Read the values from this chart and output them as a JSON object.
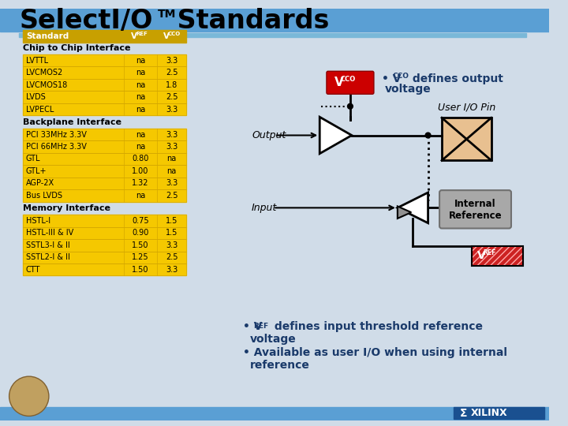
{
  "title": "SelectI/O",
  "title_tm": "TM",
  "title_suffix": " Standards",
  "bg_color": "#d0dce8",
  "header_bar_color": "#5a9fd4",
  "table_header_color": "#c8a000",
  "chip_rows": [
    [
      "LVTTL",
      "na",
      "3.3"
    ],
    [
      "LVCMOS2",
      "na",
      "2.5"
    ],
    [
      "LVCMOS18",
      "na",
      "1.8"
    ],
    [
      "LVDS",
      "na",
      "2.5"
    ],
    [
      "LVPECL",
      "na",
      "3.3"
    ]
  ],
  "backplane_rows": [
    [
      "PCI 33MHz 3.3V",
      "na",
      "3.3"
    ],
    [
      "PCI 66MHz 3.3V",
      "na",
      "3.3"
    ],
    [
      "GTL",
      "0.80",
      "na"
    ],
    [
      "GTL+",
      "1.00",
      "na"
    ],
    [
      "AGP-2X",
      "1.32",
      "3.3"
    ],
    [
      "Bus LVDS",
      "na",
      "2.5"
    ]
  ],
  "memory_rows": [
    [
      "HSTL-I",
      "0.75",
      "1.5"
    ],
    [
      "HSTL-III & IV",
      "0.90",
      "1.5"
    ],
    [
      "SSTL3-I & II",
      "1.50",
      "3.3"
    ],
    [
      "SSTL2-I & II",
      "1.25",
      "2.5"
    ],
    [
      "CTT",
      "1.50",
      "3.3"
    ]
  ],
  "vcco_box_color": "#cc0000",
  "io_pin_color": "#e8c090",
  "vref_box_color": "#cc2222",
  "int_ref_color": "#a8a8a8",
  "row_color": "#f5c800",
  "row_border_color": "#d4a800"
}
